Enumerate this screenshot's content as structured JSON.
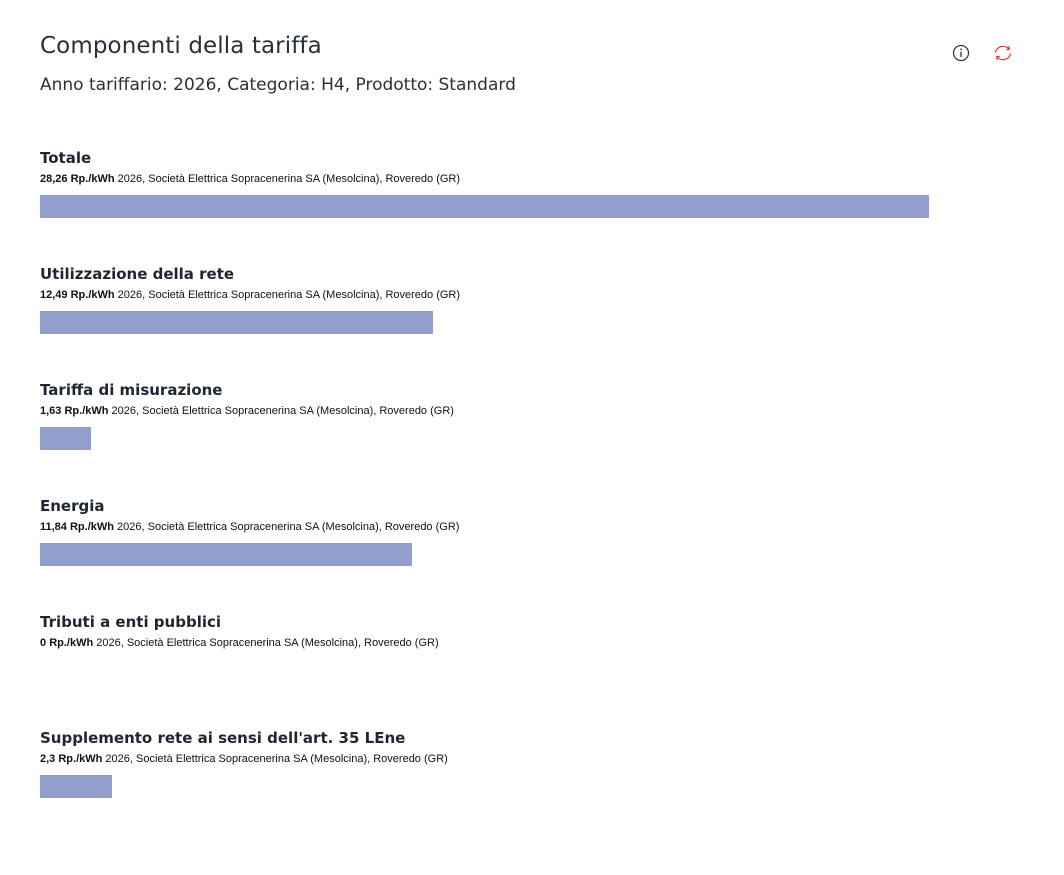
{
  "header": {
    "title": "Componenti della tariffa",
    "subtitle": "Anno tariffario: 2026, Categoria: H4, Prodotto: Standard",
    "icons": [
      "info-icon",
      "refresh-icon"
    ],
    "icon_colors": {
      "info": "#333333",
      "refresh": "#d9352b"
    }
  },
  "chart_data": {
    "type": "bar",
    "orientation": "horizontal",
    "unit": "Rp./kWh",
    "bar_color": "#929fcd",
    "xlim": [
      0,
      28.26
    ],
    "items": [
      {
        "name": "Totale",
        "value": 28.26,
        "value_label": "28,26",
        "unit": "Rp./kWh",
        "description": "2026, Società Elettrica Sopracenerina SA (Mesolcina), Roveredo (GR)"
      },
      {
        "name": "Utilizzazione della rete",
        "value": 12.49,
        "value_label": "12,49",
        "unit": "Rp./kWh",
        "description": "2026, Società Elettrica Sopracenerina SA (Mesolcina), Roveredo (GR)"
      },
      {
        "name": "Tariffa di misurazione",
        "value": 1.63,
        "value_label": "1,63",
        "unit": "Rp./kWh",
        "description": "2026, Società Elettrica Sopracenerina SA (Mesolcina), Roveredo (GR)"
      },
      {
        "name": "Energia",
        "value": 11.84,
        "value_label": "11,84",
        "unit": "Rp./kWh",
        "description": "2026, Società Elettrica Sopracenerina SA (Mesolcina), Roveredo (GR)"
      },
      {
        "name": "Tributi a enti pubblici",
        "value": 0,
        "value_label": "0",
        "unit": "Rp./kWh",
        "description": "2026, Società Elettrica Sopracenerina SA (Mesolcina), Roveredo (GR)"
      },
      {
        "name": "Supplemento rete ai sensi dell'art. 35 LEne",
        "value": 2.3,
        "value_label": "2,3",
        "unit": "Rp./kWh",
        "description": "2026, Società Elettrica Sopracenerina SA (Mesolcina), Roveredo (GR)"
      }
    ]
  }
}
